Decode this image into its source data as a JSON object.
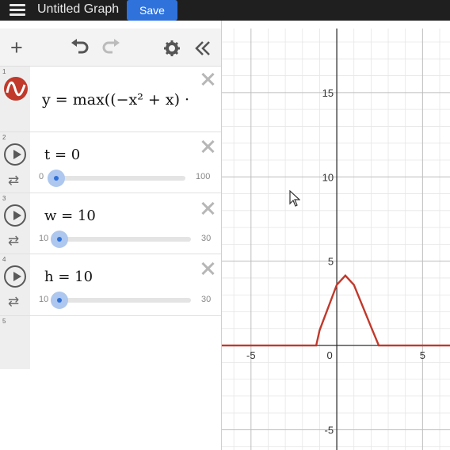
{
  "header": {
    "title": "Untitled Graph",
    "save_label": "Save"
  },
  "toolbar": {
    "icons": [
      "plus-icon",
      "undo-icon",
      "redo-icon",
      "gear-icon",
      "collapse-chevrons-icon"
    ]
  },
  "expressions": [
    {
      "index": "1",
      "latex": "y = max((−x² + x) ·",
      "color": "#c0392b",
      "line_color": "#c0392b"
    },
    {
      "index": "2",
      "text": "t = 0",
      "min": "0",
      "max": "100",
      "value": 0
    },
    {
      "index": "3",
      "text": "w = 10",
      "min": "10",
      "max": "30",
      "value": 10
    },
    {
      "index": "4",
      "text": "h = 10",
      "min": "10",
      "max": "30",
      "value": 10
    },
    {
      "index": "5",
      "text": ""
    }
  ],
  "graph": {
    "x_tick_labels": [
      "-5",
      "0",
      "5"
    ],
    "y_tick_labels": [
      "15",
      "10",
      "5",
      "-5"
    ],
    "curve_color": "#c0392b",
    "gridline_color": "#e6e6e6"
  },
  "chart_data": {
    "type": "line",
    "title": "",
    "xlabel": "",
    "ylabel": "",
    "xlim": [
      -6.7,
      6.6
    ],
    "ylim": [
      -6.2,
      18.8
    ],
    "grid": true,
    "series": [
      {
        "x": [
          -6.7,
          -1.2,
          -1.0,
          0.0,
          0.5,
          1.0,
          2.0,
          2.45,
          6.6
        ],
        "y": [
          0,
          0,
          0.9,
          3.6,
          4.15,
          3.6,
          1.1,
          0,
          0
        ]
      }
    ]
  }
}
